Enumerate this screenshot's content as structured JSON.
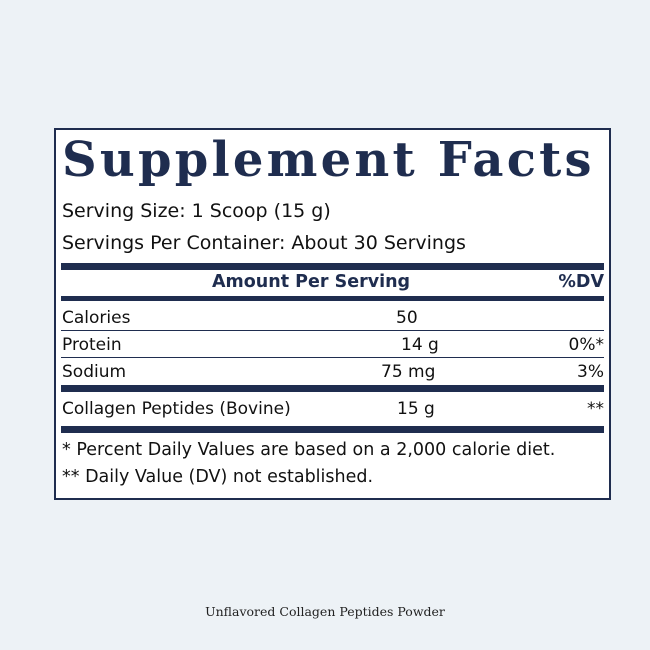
{
  "label": {
    "title": "Supplement Facts",
    "serving_size": "Serving Size: 1 Scoop (15 g)",
    "servings_per_container": "Servings Per Container: About 30 Servings",
    "header": {
      "amount_per_serving": "Amount Per Serving",
      "dv": "%DV"
    },
    "rows": [
      {
        "name": "Calories",
        "amount": "50",
        "dv": ""
      },
      {
        "name": "Protein",
        "amount": "14 g",
        "dv": "0%*"
      },
      {
        "name": "Sodium",
        "amount": "75 mg",
        "dv": "3%"
      },
      {
        "name": "Collagen Peptides (Bovine)",
        "amount": "15 g",
        "dv": "**"
      }
    ],
    "footnotes": [
      "* Percent Daily Values are based on a 2,000 calorie diet.",
      "** Daily Value (DV) not established."
    ]
  },
  "caption": "Unflavored Collagen Peptides Powder",
  "colors": {
    "background": "#edf2f6",
    "navy": "#1f2d4f",
    "text": "#111111"
  }
}
